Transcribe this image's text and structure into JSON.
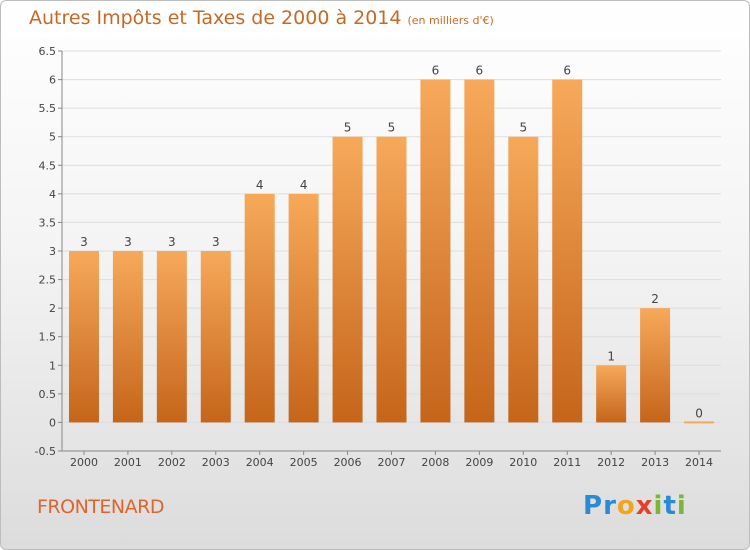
{
  "title": "Autres Impôts et Taxes de 2000 à 2014",
  "subtitle": "(en milliers d'€)",
  "commune": "FRONTENARD",
  "logo": {
    "text": "Proxiti",
    "letters": [
      "P",
      "r",
      "o",
      "x",
      "i",
      "t",
      "i"
    ],
    "colors": [
      "#2a8ad4",
      "#2a8ad4",
      "#f2a41a",
      "#e7402a",
      "#7ab834",
      "#2a8ad4",
      "#7ab834"
    ]
  },
  "colors": {
    "bar_top": "#f7a95a",
    "bar_bottom": "#c5651a",
    "title": "#c56a26",
    "grid": "#dddddd"
  },
  "chart_data": {
    "type": "bar",
    "categories": [
      "2000",
      "2001",
      "2002",
      "2003",
      "2004",
      "2005",
      "2006",
      "2007",
      "2008",
      "2009",
      "2010",
      "2011",
      "2012",
      "2013",
      "2014"
    ],
    "values": [
      3,
      3,
      3,
      3,
      4,
      4,
      5,
      5,
      6,
      6,
      5,
      6,
      1,
      2,
      0
    ],
    "labels": [
      "3",
      "3",
      "3",
      "3",
      "4",
      "4",
      "5",
      "5",
      "6",
      "6",
      "5",
      "6",
      "1",
      "2",
      "0"
    ],
    "yticks": [
      "6.5",
      "6",
      "5.5",
      "5",
      "4.5",
      "4",
      "3.5",
      "3",
      "2.5",
      "2",
      "1.5",
      "1",
      "0.5",
      "0",
      "-0.5"
    ],
    "ylim": [
      -0.5,
      6.5
    ],
    "grid": true,
    "title": "Autres Impôts et Taxes de 2000 à 2014",
    "xlabel": "",
    "ylabel": ""
  }
}
